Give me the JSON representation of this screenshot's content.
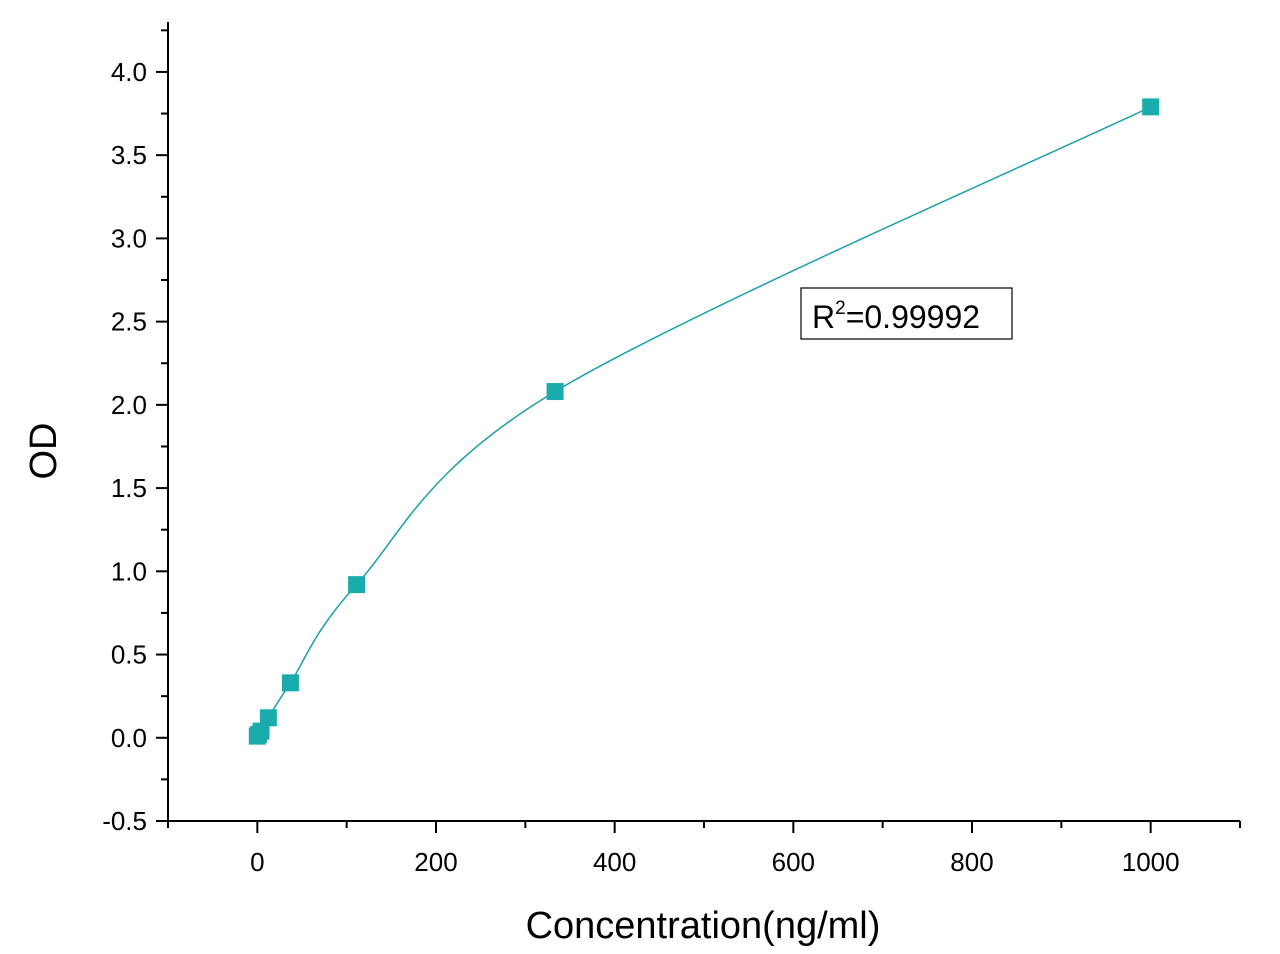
{
  "chart_data": {
    "type": "scatter",
    "xlabel": "Concentration(ng/ml)",
    "ylabel": "OD",
    "xlim": [
      -100,
      1100
    ],
    "ylim": [
      -0.5,
      4.3
    ],
    "x_major_ticks": [
      0,
      200,
      400,
      600,
      800,
      1000
    ],
    "x_tick_labels": [
      "0",
      "200",
      "400",
      "600",
      "800",
      "1000"
    ],
    "x_minor_ticks": [
      -100,
      100,
      300,
      500,
      700,
      900,
      1100
    ],
    "y_major_ticks": [
      -0.5,
      0.0,
      0.5,
      1.0,
      1.5,
      2.0,
      2.5,
      3.0,
      3.5,
      4.0
    ],
    "y_tick_labels": [
      "-0.5",
      "0.0",
      "0.5",
      "1.0",
      "1.5",
      "2.0",
      "2.5",
      "3.0",
      "3.5",
      "4.0"
    ],
    "y_minor_ticks": [
      -0.25,
      0.25,
      0.75,
      1.25,
      1.75,
      2.25,
      2.75,
      3.25,
      3.75,
      4.25
    ],
    "grid": false,
    "legend": "none",
    "marker_color": "#1aacac",
    "line_color": "#1aa0a8",
    "series": [
      {
        "x": [
          0,
          1.37,
          4.12,
          12.35,
          37.04,
          111.1,
          333.3,
          1000
        ],
        "y": [
          0.01,
          0.02,
          0.04,
          0.12,
          0.33,
          0.92,
          2.08,
          3.79
        ],
        "fit": "4PL"
      }
    ],
    "annotation": {
      "prefix": "R",
      "superscript": "2",
      "text": "=0.99992"
    }
  }
}
